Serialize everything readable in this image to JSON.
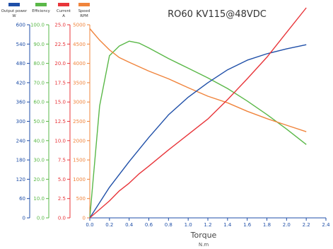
{
  "chart_data": {
    "type": "line",
    "title": "RO60 KV115@48VDC",
    "xlabel": "Torque",
    "xunit": "N.m",
    "xlim": [
      0,
      2.4
    ],
    "xticks": [
      "0.0",
      "0.2",
      "0.4",
      "0.6",
      "0.8",
      "1.0",
      "1.2",
      "1.4",
      "1.6",
      "1.8",
      "2.0",
      "2.2",
      "2.4"
    ],
    "grid": false,
    "legend_position": "top-left",
    "axes": [
      {
        "key": "power",
        "label": "Output power",
        "unit": "W",
        "color": "#1f4fa8",
        "lim": [
          0,
          600
        ],
        "ticks": [
          "0",
          "60",
          "120",
          "180",
          "240",
          "300",
          "360",
          "420",
          "480",
          "540",
          "600"
        ]
      },
      {
        "key": "eff",
        "label": "Efficiency",
        "unit": "",
        "color": "#5ab848",
        "lim": [
          0,
          100
        ],
        "ticks": [
          "0.0",
          "10.0",
          "20.0",
          "30.0",
          "40.0",
          "50.0",
          "60.0",
          "70.0",
          "80.0",
          "90.0",
          "100.0"
        ]
      },
      {
        "key": "cur",
        "label": "Current",
        "unit": "A",
        "color": "#e8353a",
        "lim": [
          0,
          25
        ],
        "ticks": [
          "0.0",
          "2.5",
          "5.0",
          "7.5",
          "10.0",
          "12.5",
          "15.0",
          "17.5",
          "20.0",
          "22.5",
          "25.0"
        ]
      },
      {
        "key": "spd",
        "label": "Speed",
        "unit": "RPM",
        "color": "#f0843c",
        "lim": [
          0,
          5000
        ],
        "ticks": [
          "0",
          "500",
          "1000",
          "1500",
          "2000",
          "2500",
          "3000",
          "3500",
          "4000",
          "4500",
          "5000"
        ]
      }
    ],
    "series": [
      {
        "name": "Output power",
        "axis": "power",
        "color": "#1f4fa8",
        "x": [
          0,
          0.2,
          0.4,
          0.6,
          0.8,
          1.0,
          1.2,
          1.4,
          1.6,
          1.8,
          2.0,
          2.2
        ],
        "y": [
          0,
          95,
          175,
          250,
          320,
          375,
          420,
          460,
          490,
          510,
          525,
          538
        ]
      },
      {
        "name": "Efficiency",
        "axis": "eff",
        "color": "#5ab848",
        "x": [
          0,
          0.1,
          0.2,
          0.3,
          0.4,
          0.5,
          0.6,
          0.8,
          1.0,
          1.2,
          1.4,
          1.6,
          1.8,
          2.0,
          2.2
        ],
        "y": [
          0,
          58,
          84,
          89,
          91.5,
          90.5,
          88,
          82.5,
          77.5,
          72.5,
          67,
          60.5,
          53.5,
          46,
          38
        ]
      },
      {
        "name": "Current",
        "axis": "cur",
        "color": "#e8353a",
        "x": [
          0,
          0.2,
          0.3,
          0.4,
          0.5,
          0.6,
          0.8,
          1.0,
          1.2,
          1.4,
          1.6,
          1.8,
          2.0,
          2.2
        ],
        "y": [
          0,
          2.2,
          3.5,
          4.5,
          5.7,
          6.7,
          8.8,
          10.8,
          12.8,
          15.3,
          18.0,
          20.8,
          24.0,
          27.2
        ]
      },
      {
        "name": "Speed",
        "axis": "spd",
        "color": "#f0843c",
        "x": [
          0,
          0.1,
          0.2,
          0.3,
          0.4,
          0.6,
          0.8,
          1.0,
          1.2,
          1.4,
          1.6,
          1.8,
          2.0,
          2.2
        ],
        "y": [
          4900,
          4600,
          4350,
          4150,
          4030,
          3800,
          3600,
          3370,
          3150,
          2980,
          2760,
          2570,
          2400,
          2230
        ]
      }
    ]
  }
}
